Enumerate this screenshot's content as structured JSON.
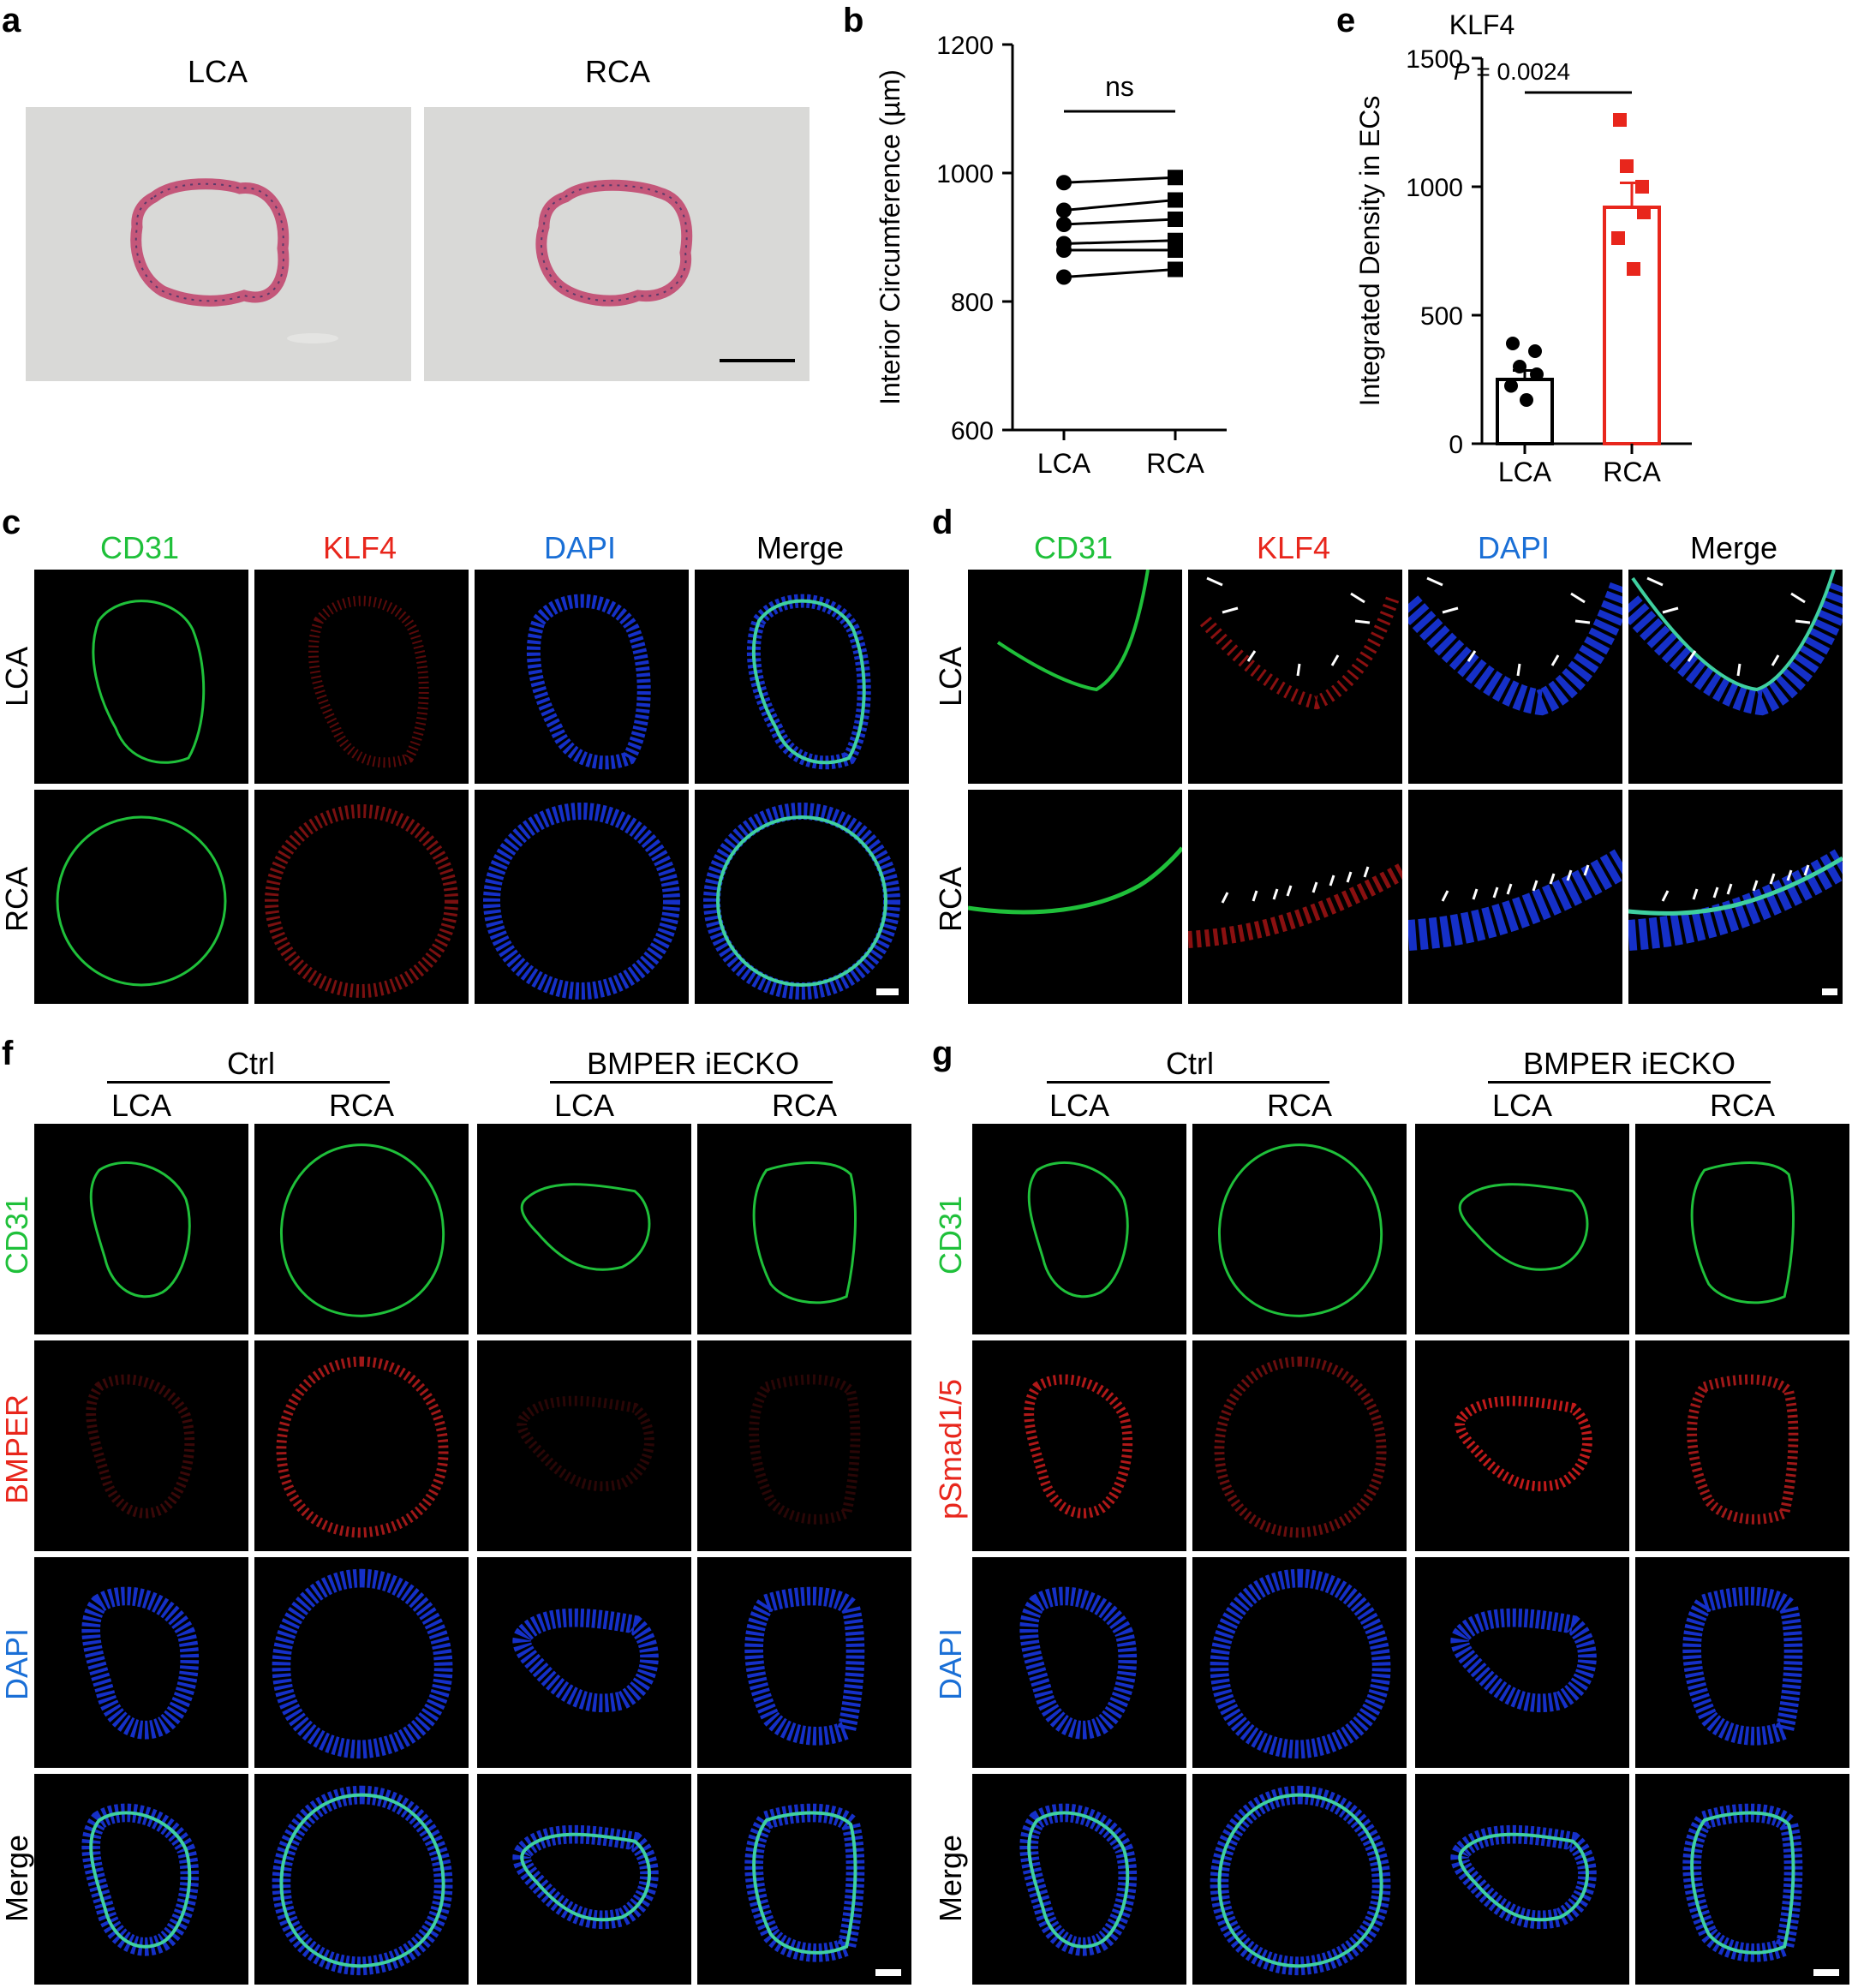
{
  "panel_letters": {
    "a": "a",
    "b": "b",
    "c": "c",
    "d": "d",
    "e": "e",
    "f": "f",
    "g": "g"
  },
  "panel_a": {
    "left_label": "LCA",
    "right_label": "RCA"
  },
  "chart_data": [
    {
      "panel": "b",
      "type": "line",
      "ylabel": "Interior Circumference (µm)",
      "categories": [
        "LCA",
        "RCA"
      ],
      "ylim": [
        600,
        1200
      ],
      "yticks": [
        600,
        800,
        1000,
        1200
      ],
      "annotation": "ns",
      "pairs": [
        [
          985,
          993
        ],
        [
          942,
          958
        ],
        [
          920,
          928
        ],
        [
          890,
          895
        ],
        [
          880,
          880
        ],
        [
          838,
          850
        ]
      ]
    },
    {
      "panel": "e",
      "type": "bar",
      "title": "KLF4",
      "ylabel": "Integrated Density in ECs",
      "categories": [
        "LCA",
        "RCA"
      ],
      "ylim": [
        0,
        1500
      ],
      "yticks": [
        0,
        500,
        1000,
        1500
      ],
      "values": [
        250,
        920
      ],
      "sem": [
        35,
        95
      ],
      "points": [
        [
          390,
          360,
          300,
          270,
          225,
          170
        ],
        [
          1260,
          1000,
          1080,
          900,
          800,
          680
        ]
      ],
      "colors": [
        "#000000",
        "#e8261c"
      ],
      "annotation_p": "P",
      "annotation_value": " = 0.0024"
    }
  ],
  "panel_c": {
    "cols": [
      "CD31",
      "KLF4",
      "DAPI",
      "Merge"
    ],
    "rows": [
      "LCA",
      "RCA"
    ]
  },
  "panel_d": {
    "cols": [
      "CD31",
      "KLF4",
      "DAPI",
      "Merge"
    ],
    "rows": [
      "LCA",
      "RCA"
    ]
  },
  "panel_f": {
    "group1": "Ctrl",
    "group2": "BMPER iECKO",
    "cols": [
      "LCA",
      "RCA",
      "LCA",
      "RCA"
    ],
    "rows": [
      "CD31",
      "BMPER",
      "DAPI",
      "Merge"
    ]
  },
  "panel_g": {
    "group1": "Ctrl",
    "group2": "BMPER iECKO",
    "cols": [
      "LCA",
      "RCA",
      "LCA",
      "RCA"
    ],
    "rows": [
      "CD31",
      "pSmad1/5",
      "DAPI",
      "Merge"
    ]
  },
  "colors": {
    "green": "#1fc03a",
    "red": "#e8261c",
    "blue": "#1a6fd6",
    "he_bg": "#d9d9d7",
    "he_ring": "#c4577a"
  }
}
